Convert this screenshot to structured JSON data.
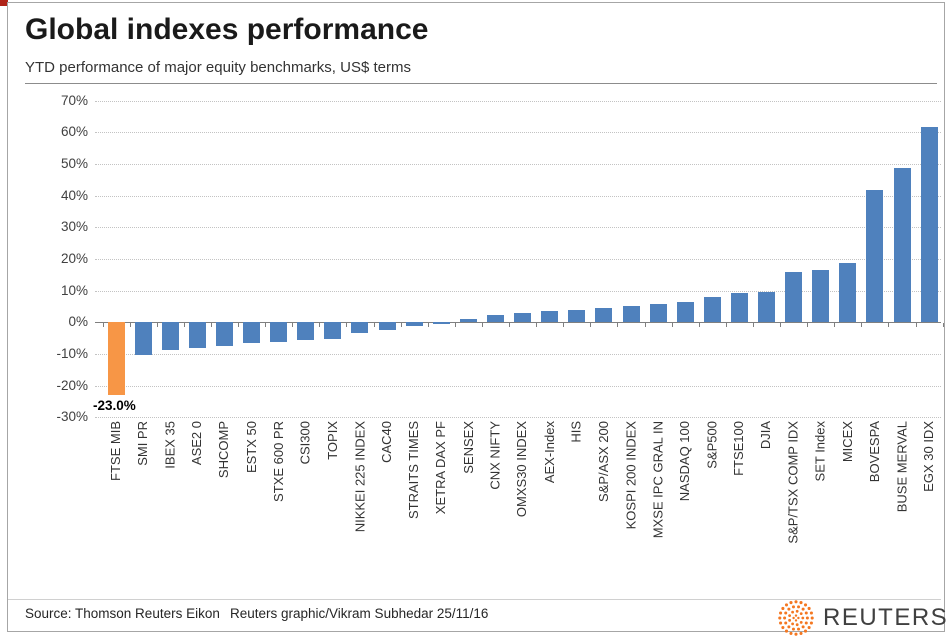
{
  "header": {
    "title": "Global indexes performance",
    "subtitle": "YTD performance of major equity benchmarks, US$ terms"
  },
  "footer": {
    "source": "Source: Thomson Reuters Eikon",
    "credit": "Reuters graphic/Vikram Subhedar 25/11/16",
    "logo_text": "REUTERS"
  },
  "chart_data": {
    "type": "bar",
    "title": "Global indexes performance",
    "subtitle": "YTD performance of major equity benchmarks, US$ terms",
    "categories": [
      "FTSE MIB",
      "SMI PR",
      "IBEX 35",
      "ASE2 0",
      "SHCOMP",
      "ESTX 50",
      "STXE 600 PR",
      "CSI300",
      "TOPIX",
      "NIKKEI 225 INDEX",
      "CAC40",
      "STRAITS TIMES",
      "XETRA DAX PF",
      "SENSEX",
      "CNX NIFTY",
      "OMXS30 INDEX",
      "AEX-Index",
      "HIS",
      "S&P/ASX 200",
      "KOSPI 200 INDEX",
      "MXSE IPC GRAL IN",
      "NASDAQ 100",
      "S&P500",
      "FTSE100",
      "DJIA",
      "S&P/TSX COMP IDX",
      "SET Index",
      "MICEX",
      "BOVESPA",
      "BUSE MERVAL",
      "EGX 30 IDX"
    ],
    "values": [
      -23.0,
      -10.3,
      -8.9,
      -8.2,
      -7.5,
      -6.7,
      -6.3,
      -5.7,
      -5.4,
      -3.3,
      -2.6,
      -1.3,
      -0.5,
      1.0,
      2.2,
      3.0,
      3.7,
      4.0,
      4.4,
      5.2,
      5.8,
      6.3,
      8.0,
      9.3,
      9.6,
      15.8,
      16.5,
      18.8,
      41.8,
      48.8,
      61.8
    ],
    "unit": "%",
    "y_tick_labels": [
      "70%",
      "60%",
      "50%",
      "40%",
      "30%",
      "20%",
      "10%",
      "0%",
      "-10%",
      "-20%",
      "-30%"
    ],
    "ylim": [
      -30,
      70
    ],
    "grid": "horizontal-dotted",
    "legend": "none",
    "bar_color_default": "#4F81BD",
    "bar_color_highlight": "#F79646",
    "highlight_index": 0,
    "data_label": {
      "index": 0,
      "text": "-23.0%"
    },
    "logo_color": "#F47721"
  }
}
